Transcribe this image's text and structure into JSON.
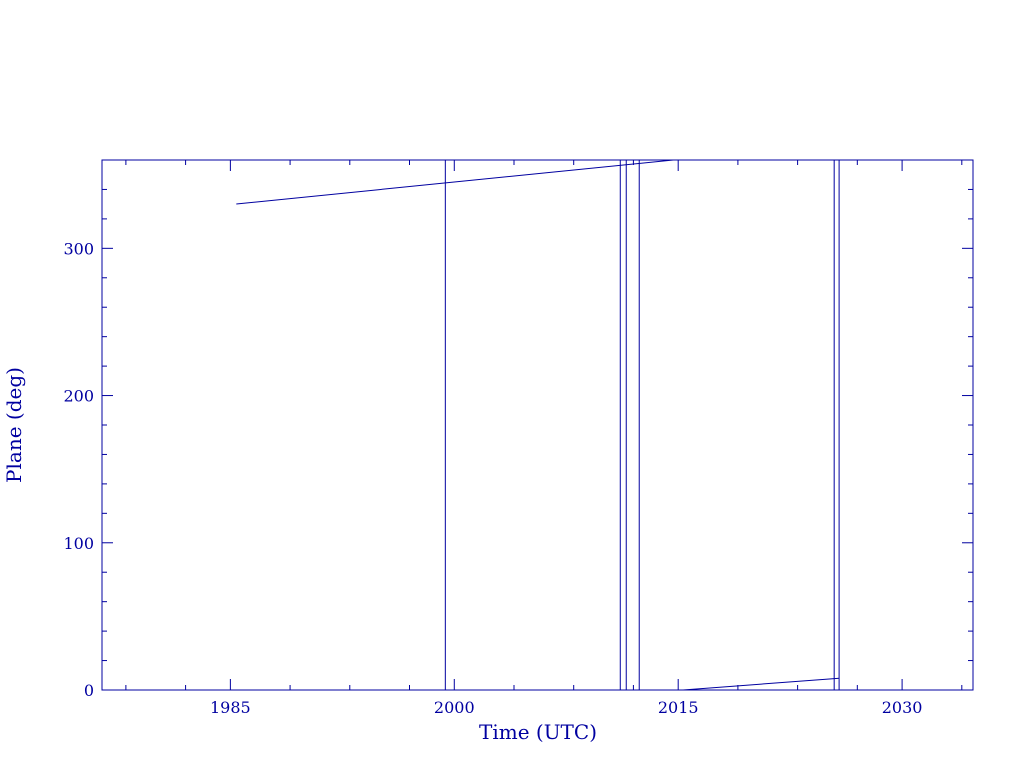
{
  "chart_data": {
    "type": "line",
    "title": "",
    "xlabel": "Time (UTC)",
    "ylabel": "Plane (deg)",
    "xlim": [
      1976.4,
      2034.75
    ],
    "ylim": [
      0,
      360
    ],
    "x_ticks": [
      1985,
      2000,
      2015,
      2030
    ],
    "x_tick_labels": [
      "1985",
      "2000",
      "2015",
      "2030"
    ],
    "x_minor_ticks": [
      1978,
      1982,
      1989,
      1993,
      1997,
      2004,
      2008,
      2012,
      2019,
      2023,
      2027,
      2034
    ],
    "y_ticks": [
      0,
      100,
      200,
      300
    ],
    "y_tick_labels": [
      "0",
      "100",
      "200",
      "300"
    ],
    "y_minor_step": 20,
    "grid": false,
    "color": "#0000a0",
    "series": [
      {
        "x": [
          1985.4,
          2014.67
        ],
        "y": [
          330.1,
          360
        ]
      },
      {
        "x": [
          2015.33,
          2025.8
        ],
        "y": [
          0,
          8
        ]
      }
    ],
    "vertical_lines": [
      1999.4,
      2011.12,
      2011.52,
      2012.39,
      2025.45,
      2025.78
    ]
  }
}
